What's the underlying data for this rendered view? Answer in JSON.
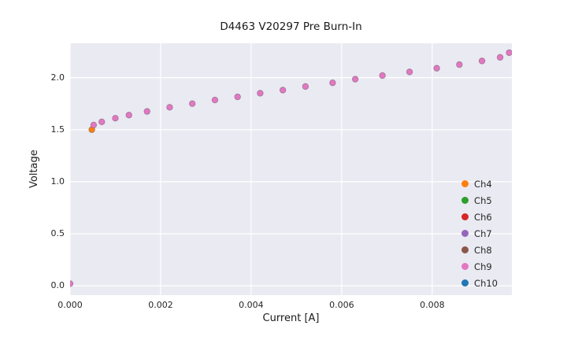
{
  "chart": {
    "title": "D4463 V20297 Pre Burn-In",
    "xlabel": "Current [A]",
    "ylabel": "Voltage"
  },
  "chart_data": {
    "type": "scatter",
    "title": "D4463 V20297 Pre Burn-In",
    "xlabel": "Current [A]",
    "ylabel": "Voltage",
    "xlim": [
      0,
      0.00976
    ],
    "ylim": [
      -0.09,
      2.33
    ],
    "grid": true,
    "plot_bg": "#eaeaf2",
    "grid_color": "#ffffff",
    "legend_position": "lower right",
    "xticks": [
      {
        "value": 0.0,
        "label": "0.000"
      },
      {
        "value": 0.002,
        "label": "0.002"
      },
      {
        "value": 0.004,
        "label": "0.004"
      },
      {
        "value": 0.006,
        "label": "0.006"
      },
      {
        "value": 0.008,
        "label": "0.008"
      }
    ],
    "yticks": [
      {
        "value": 0.0,
        "label": "0.0"
      },
      {
        "value": 0.5,
        "label": "0.5"
      },
      {
        "value": 1.0,
        "label": "1.0"
      },
      {
        "value": 1.5,
        "label": "1.5"
      },
      {
        "value": 2.0,
        "label": "2.0"
      }
    ],
    "series": [
      {
        "name": "Ch4",
        "color": "#ff7f0e",
        "points": [
          [
            0.00048,
            1.5
          ]
        ]
      },
      {
        "name": "Ch5",
        "color": "#2ca02c",
        "points": []
      },
      {
        "name": "Ch6",
        "color": "#d62728",
        "points": []
      },
      {
        "name": "Ch7",
        "color": "#9467bd",
        "points": []
      },
      {
        "name": "Ch8",
        "color": "#8c564b",
        "points": []
      },
      {
        "name": "Ch9",
        "color": "#e377c2",
        "points": [
          [
            0.0,
            0.02
          ],
          [
            0.00052,
            1.545
          ],
          [
            0.0007,
            1.575
          ],
          [
            0.001,
            1.61
          ],
          [
            0.0013,
            1.64
          ],
          [
            0.0017,
            1.675
          ],
          [
            0.0022,
            1.715
          ],
          [
            0.0027,
            1.75
          ],
          [
            0.0032,
            1.785
          ],
          [
            0.0037,
            1.815
          ],
          [
            0.0042,
            1.85
          ],
          [
            0.0047,
            1.88
          ],
          [
            0.0052,
            1.915
          ],
          [
            0.0058,
            1.95
          ],
          [
            0.0063,
            1.985
          ],
          [
            0.0069,
            2.02
          ],
          [
            0.0075,
            2.055
          ],
          [
            0.0081,
            2.09
          ],
          [
            0.0086,
            2.125
          ],
          [
            0.0091,
            2.16
          ],
          [
            0.0095,
            2.195
          ],
          [
            0.0097,
            2.24
          ]
        ]
      },
      {
        "name": "Ch10",
        "color": "#1f77b4",
        "points": []
      }
    ]
  }
}
